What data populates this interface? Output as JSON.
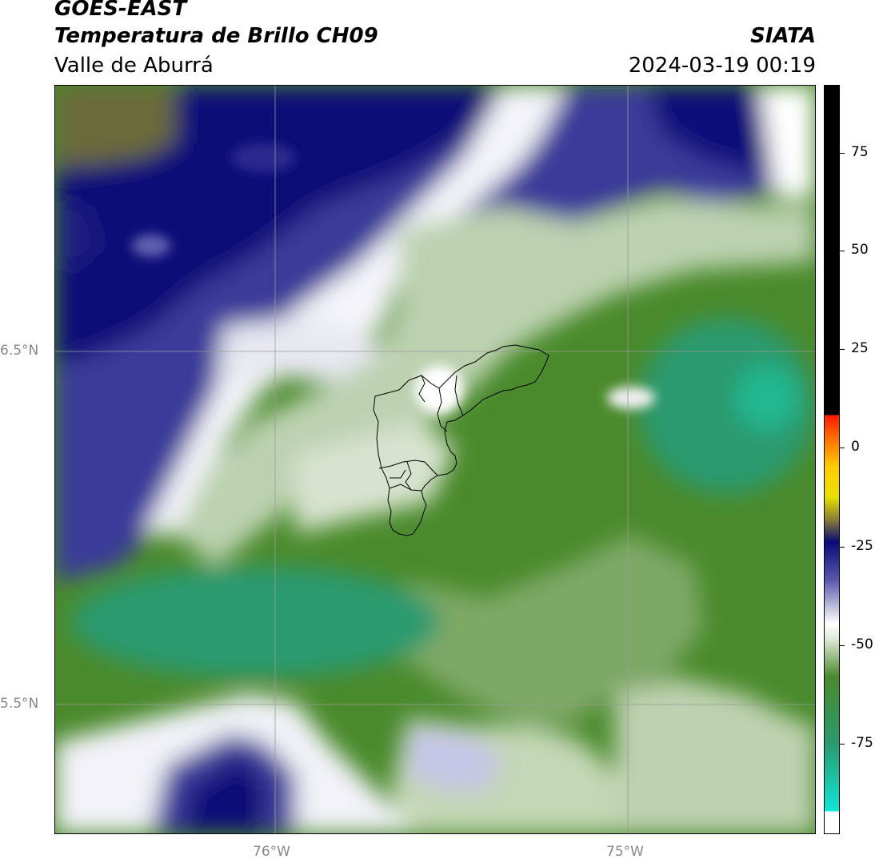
{
  "header": {
    "title": "GOES-EAST",
    "product": "Temperatura de Brillo CH09",
    "region": "Valle de Aburrá",
    "agency": "SIATA",
    "datetime": "2024-03-19 00:19"
  },
  "axes": {
    "lat_labels": [
      "6.5°N",
      "5.5°N"
    ],
    "lon_labels": [
      "76°W",
      "75°W"
    ]
  },
  "colorbar": {
    "ticks": [
      "75",
      "50",
      "25",
      "0",
      "-25",
      "-50",
      "-75"
    ],
    "colors": {
      "black": "#000000",
      "red": "#ff1a00",
      "orange": "#ff8c00",
      "yellow": "#ffee00",
      "olive": "#8a7f34",
      "navy": "#0a0a78",
      "periwinkle": "#8c8ccc",
      "white": "#ffffff",
      "light_green": "#c8d8bc",
      "green": "#4a8a2c",
      "teal": "#2a9a70",
      "cyan": "#10e6d6"
    }
  }
}
